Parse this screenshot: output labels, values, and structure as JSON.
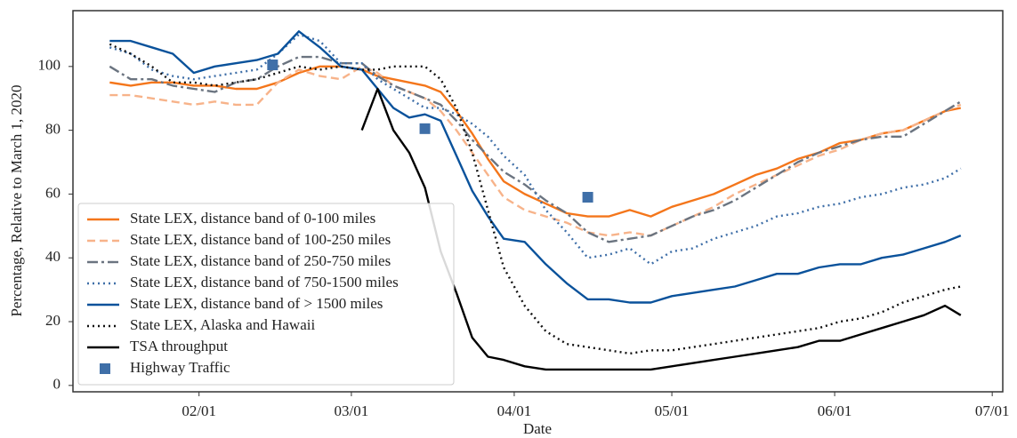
{
  "chart_data": {
    "type": "line",
    "x_label": "Date",
    "y_label": "Percentage, Relative to March 1, 2020",
    "x": [
      "01/15",
      "01/19",
      "01/23",
      "01/27",
      "01/31",
      "02/04",
      "02/08",
      "02/12",
      "02/16",
      "02/20",
      "02/24",
      "02/28",
      "03/03",
      "03/06",
      "03/09",
      "03/12",
      "03/15",
      "03/18",
      "03/21",
      "03/24",
      "03/27",
      "03/30",
      "04/03",
      "04/07",
      "04/11",
      "04/15",
      "04/19",
      "04/23",
      "04/27",
      "05/01",
      "05/05",
      "05/09",
      "05/13",
      "05/17",
      "05/21",
      "05/25",
      "05/29",
      "06/02",
      "06/06",
      "06/10",
      "06/14",
      "06/18",
      "06/22",
      "06/25"
    ],
    "xlim": [
      "01/08",
      "07/03"
    ],
    "xticks": [
      "02/01",
      "03/01",
      "04/01",
      "05/01",
      "06/01",
      "07/01"
    ],
    "ylim": [
      -2,
      117.5
    ],
    "yticks": [
      0,
      20,
      40,
      60,
      80,
      100
    ],
    "grid": false,
    "legend": "lower left",
    "series": [
      {
        "name": "State LEX, distance band of 0-100 miles",
        "color": "#f4761b",
        "style": "solid",
        "values": [
          95,
          94,
          95,
          95,
          94,
          94,
          93,
          93,
          95,
          98,
          100,
          100,
          99,
          97,
          96,
          95,
          94,
          92,
          86,
          79,
          71,
          64,
          60,
          57,
          54,
          53,
          53,
          55,
          53,
          56,
          58,
          60,
          63,
          66,
          68,
          71,
          73,
          76,
          77,
          79,
          80,
          83,
          86,
          87
        ]
      },
      {
        "name": "State LEX, distance band of 100-250 miles",
        "color": "#f7b38a",
        "style": "dashed",
        "values": [
          91,
          91,
          90,
          89,
          88,
          89,
          88,
          88,
          95,
          99,
          97,
          96,
          100,
          98,
          94,
          92,
          90,
          86,
          80,
          73,
          66,
          59,
          55,
          53,
          51,
          48,
          47,
          48,
          47,
          50,
          53,
          56,
          60,
          63,
          66,
          69,
          72,
          74,
          77,
          79,
          80,
          83,
          86,
          88
        ]
      },
      {
        "name": "State LEX, distance band of 250-750 miles",
        "color": "#6b7480",
        "style": "dashdot",
        "values": [
          100,
          96,
          96,
          94,
          93,
          92,
          95,
          96,
          100,
          103,
          103,
          101,
          101,
          97,
          94,
          92,
          90,
          88,
          83,
          77,
          72,
          67,
          63,
          58,
          54,
          48,
          45,
          46,
          47,
          50,
          53,
          55,
          58,
          62,
          66,
          70,
          73,
          75,
          77,
          78,
          78,
          82,
          86,
          89
        ]
      },
      {
        "name": "State LEX, distance band of 750-1500 miles",
        "color": "#3f6fa8",
        "style": "dotted",
        "values": [
          106,
          104,
          99,
          97,
          96,
          97,
          98,
          99,
          104,
          110,
          108,
          101,
          101,
          96,
          93,
          90,
          87,
          87,
          85,
          82,
          78,
          72,
          66,
          55,
          48,
          40,
          41,
          43,
          38,
          42,
          43,
          46,
          48,
          50,
          53,
          54,
          56,
          57,
          59,
          60,
          62,
          63,
          65,
          68
        ]
      },
      {
        "name": "State LEX, distance band of > 1500 miles",
        "color": "#0a529b",
        "style": "solid",
        "values": [
          108,
          108,
          106,
          104,
          98,
          100,
          101,
          102,
          104,
          111,
          106,
          100,
          99,
          93,
          87,
          84,
          85,
          83,
          72,
          61,
          53,
          46,
          45,
          38,
          32,
          27,
          27,
          26,
          26,
          28,
          29,
          30,
          31,
          33,
          35,
          35,
          37,
          38,
          38,
          40,
          41,
          43,
          45,
          47
        ]
      },
      {
        "name": "State LEX, Alaska and Hawaii",
        "color": "#111111",
        "style": "dotted",
        "values": [
          107,
          104,
          100,
          95,
          95,
          94,
          95,
          96,
          98,
          100,
          99,
          100,
          99,
          99,
          100,
          100,
          100,
          96,
          87,
          73,
          55,
          37,
          25,
          17,
          13,
          12,
          11,
          10,
          11,
          11,
          12,
          13,
          14,
          15,
          16,
          17,
          18,
          20,
          21,
          23,
          26,
          28,
          30,
          31
        ]
      },
      {
        "name": "TSA throughput",
        "color": "#000000",
        "style": "solid",
        "values": [
          null,
          null,
          null,
          null,
          null,
          null,
          null,
          null,
          null,
          null,
          null,
          null,
          80,
          93,
          80,
          73,
          62,
          42,
          29,
          15,
          9,
          8,
          6,
          5,
          5,
          5,
          5,
          5,
          5,
          6,
          7,
          8,
          9,
          10,
          11,
          12,
          14,
          14,
          16,
          18,
          20,
          22,
          25,
          22
        ]
      },
      {
        "name": "Highway Traffic",
        "color": "#3f6fa8",
        "style": "scatter",
        "x": [
          "02/15",
          "03/15",
          "04/15"
        ],
        "values": [
          100.5,
          80.5,
          59
        ]
      }
    ]
  }
}
